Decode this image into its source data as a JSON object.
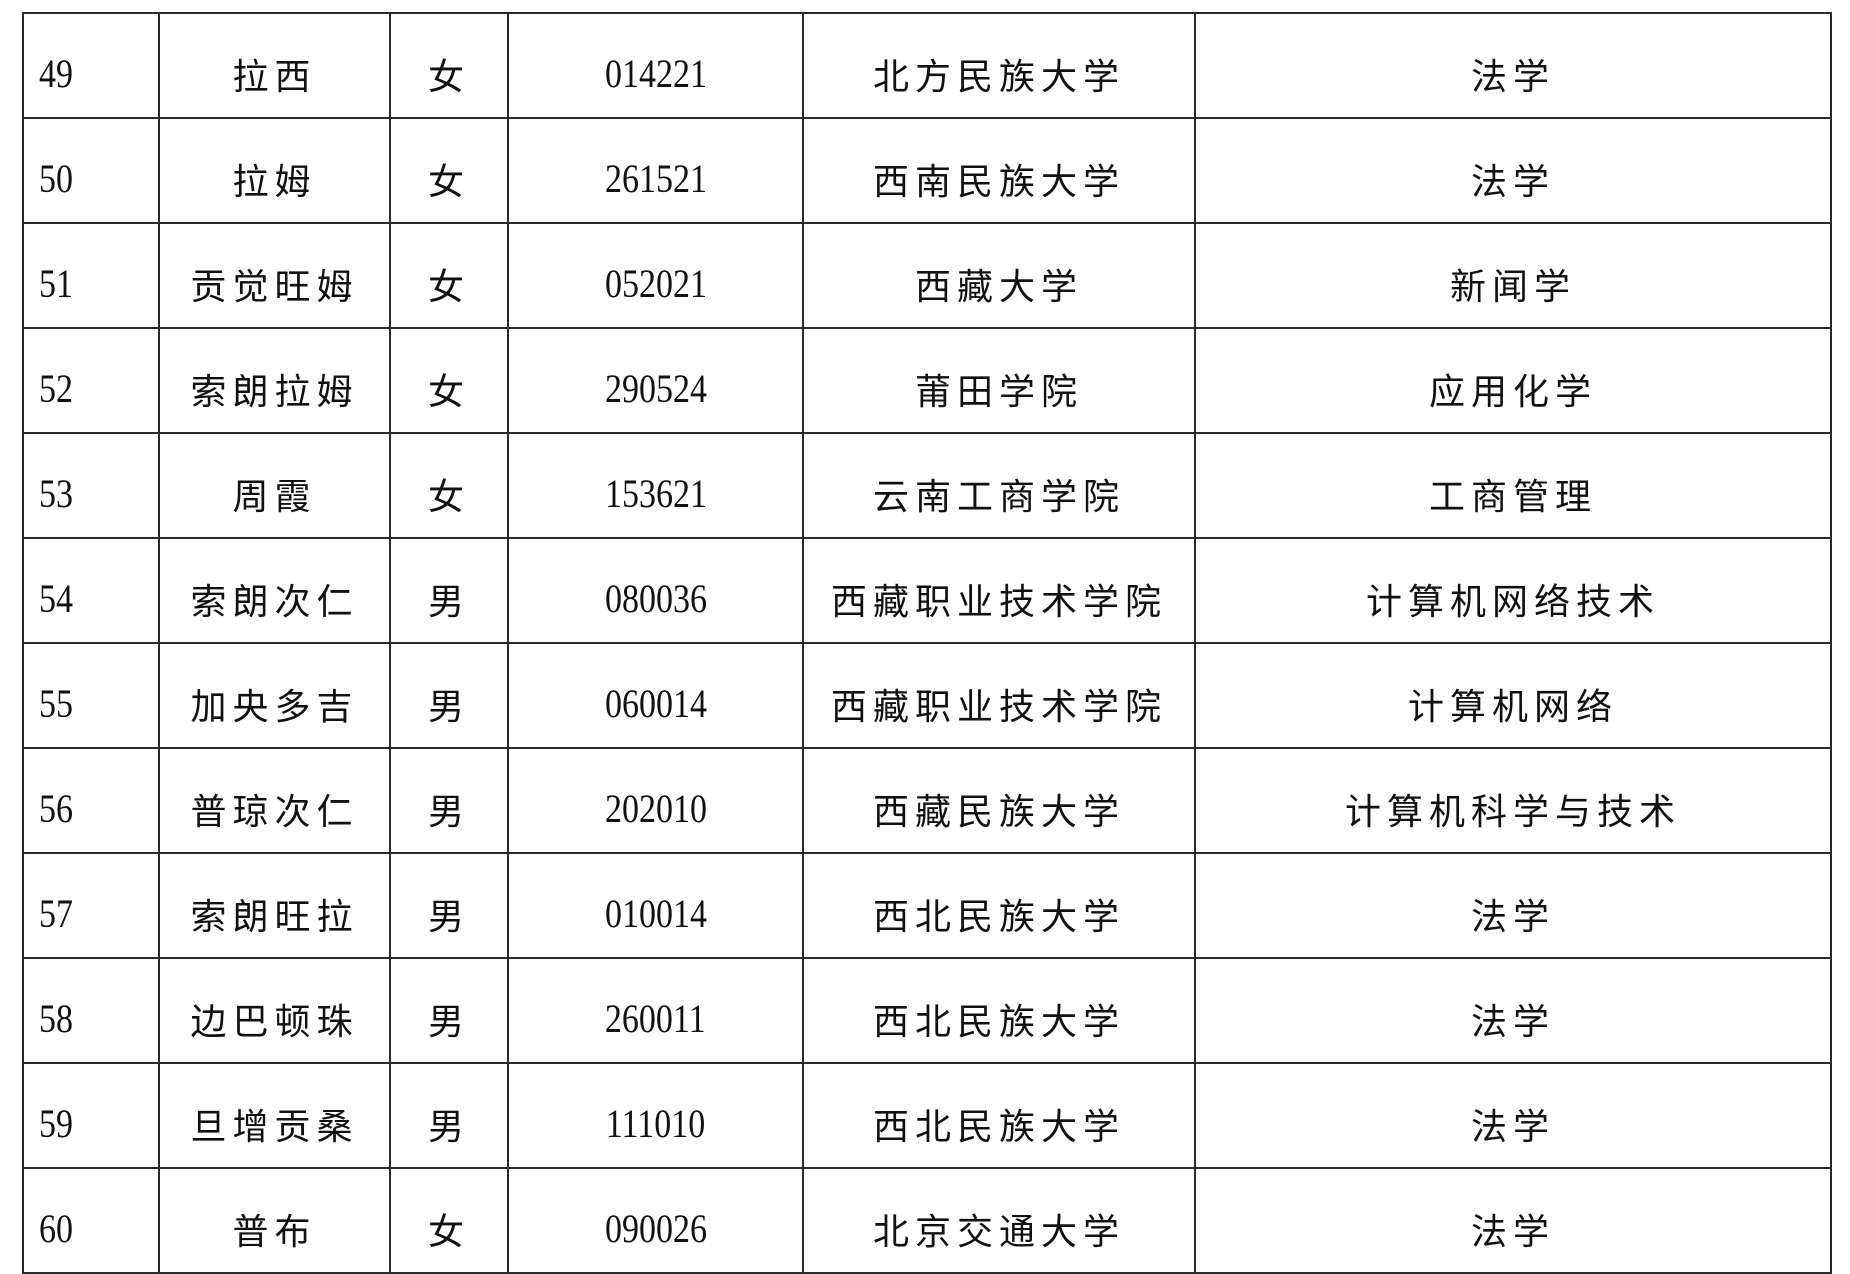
{
  "rows": [
    {
      "no": "49",
      "name": "拉西",
      "gender": "女",
      "code": "014221",
      "school": "北方民族大学",
      "major": "法学"
    },
    {
      "no": "50",
      "name": "拉姆",
      "gender": "女",
      "code": "261521",
      "school": "西南民族大学",
      "major": "法学"
    },
    {
      "no": "51",
      "name": "贡觉旺姆",
      "gender": "女",
      "code": "052021",
      "school": "西藏大学",
      "major": "新闻学"
    },
    {
      "no": "52",
      "name": "索朗拉姆",
      "gender": "女",
      "code": "290524",
      "school": "莆田学院",
      "major": "应用化学"
    },
    {
      "no": "53",
      "name": "周霞",
      "gender": "女",
      "code": "153621",
      "school": "云南工商学院",
      "major": "工商管理"
    },
    {
      "no": "54",
      "name": "索朗次仁",
      "gender": "男",
      "code": "080036",
      "school": "西藏职业技术学院",
      "major": "计算机网络技术"
    },
    {
      "no": "55",
      "name": "加央多吉",
      "gender": "男",
      "code": "060014",
      "school": "西藏职业技术学院",
      "major": "计算机网络"
    },
    {
      "no": "56",
      "name": "普琼次仁",
      "gender": "男",
      "code": "202010",
      "school": "西藏民族大学",
      "major": "计算机科学与技术"
    },
    {
      "no": "57",
      "name": "索朗旺拉",
      "gender": "男",
      "code": "010014",
      "school": "西北民族大学",
      "major": "法学"
    },
    {
      "no": "58",
      "name": "边巴顿珠",
      "gender": "男",
      "code": "260011",
      "school": "西北民族大学",
      "major": "法学"
    },
    {
      "no": "59",
      "name": "旦增贡桑",
      "gender": "男",
      "code": "111010",
      "school": "西北民族大学",
      "major": "法学"
    },
    {
      "no": "60",
      "name": "普布",
      "gender": "女",
      "code": "090026",
      "school": "北京交通大学",
      "major": "法学"
    }
  ]
}
